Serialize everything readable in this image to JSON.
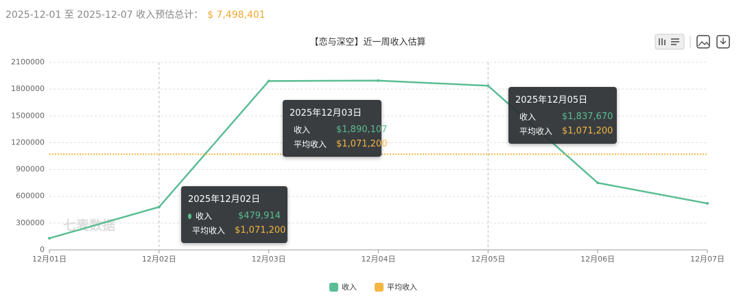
{
  "header": {
    "range": "2025-12-01 至 2025-12-07 收入预估总计：",
    "total": "$ 7,498,401"
  },
  "chart_data": {
    "type": "line",
    "title": "【恋与深空】近一周收入估算",
    "watermark": "七麦数据",
    "categories": [
      "12月01日",
      "12月02日",
      "12月03日",
      "12月04日",
      "12月05日",
      "12月06日",
      "12月07日"
    ],
    "tooltip_titles": [
      null,
      "2025年12月02日",
      "2025年12月03日",
      null,
      "2025年12月05日",
      null,
      null
    ],
    "series": [
      {
        "name": "收入",
        "color": "#5bbd94",
        "values": [
          130000,
          479914,
          1890107,
          1895000,
          1837670,
          750000,
          520000
        ],
        "value_labels": [
          null,
          "$479,914",
          "$1,890,107",
          null,
          "$1,837,670",
          null,
          null
        ]
      },
      {
        "name": "平均收入",
        "color": "#f5b642",
        "dashed": true,
        "values": [
          1071200,
          1071200,
          1071200,
          1071200,
          1071200,
          1071200,
          1071200
        ],
        "value_labels": [
          null,
          "$1,071,200",
          "$1,071,200",
          null,
          "$1,071,200",
          null,
          null
        ]
      }
    ],
    "ylim": [
      0,
      2100000
    ],
    "yticks": [
      0,
      300000,
      600000,
      900000,
      1200000,
      1500000,
      1800000,
      2100000
    ],
    "grid": true,
    "legend": "bottom"
  }
}
